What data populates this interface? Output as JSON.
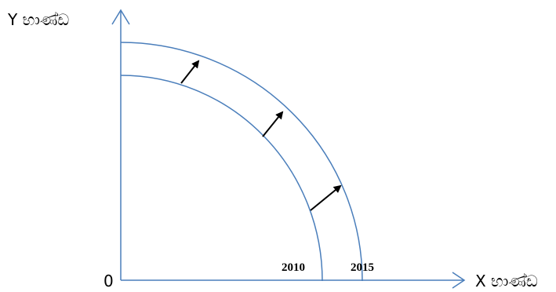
{
  "diagram": {
    "origin_label": "0",
    "y_axis_label": "Y භාණ්ඩ",
    "x_axis_label": "X භාණ්ඩ",
    "curves": [
      {
        "label": "2010"
      },
      {
        "label": "2015"
      }
    ],
    "colors": {
      "axis": "#4a7ebb",
      "curve": "#4a7ebb",
      "arrow": "#000000",
      "text": "#000000"
    }
  }
}
